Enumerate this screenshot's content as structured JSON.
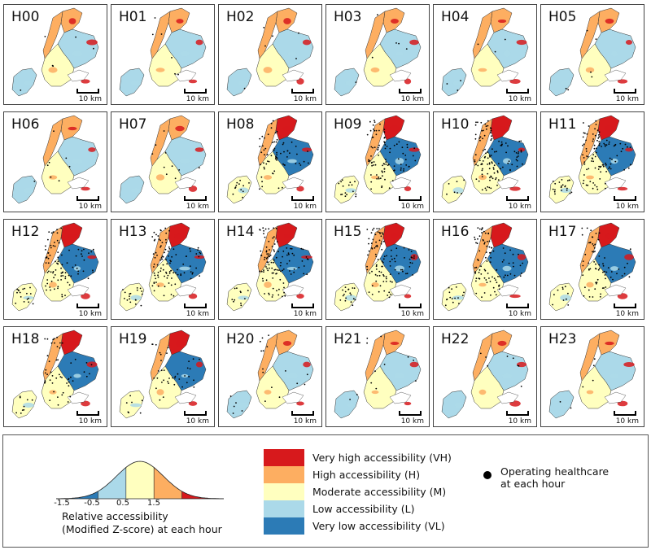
{
  "panels": [
    {
      "label": "H00",
      "scale": "10 km",
      "points": 6
    },
    {
      "label": "H01",
      "scale": "10 km",
      "points": 6
    },
    {
      "label": "H02",
      "scale": "10 km",
      "points": 6
    },
    {
      "label": "H03",
      "scale": "10 km",
      "points": 6
    },
    {
      "label": "H04",
      "scale": "10 km",
      "points": 6
    },
    {
      "label": "H05",
      "scale": "10 km",
      "points": 6
    },
    {
      "label": "H06",
      "scale": "10 km",
      "points": 8
    },
    {
      "label": "H07",
      "scale": "10 km",
      "points": 10
    },
    {
      "label": "H08",
      "scale": "10 km",
      "points": 80
    },
    {
      "label": "H09",
      "scale": "10 km",
      "points": 110
    },
    {
      "label": "H10",
      "scale": "10 km",
      "points": 120
    },
    {
      "label": "H11",
      "scale": "10 km",
      "points": 120
    },
    {
      "label": "H12",
      "scale": "10 km",
      "points": 110
    },
    {
      "label": "H13",
      "scale": "10 km",
      "points": 120
    },
    {
      "label": "H14",
      "scale": "10 km",
      "points": 120
    },
    {
      "label": "H15",
      "scale": "10 km",
      "points": 120
    },
    {
      "label": "H16",
      "scale": "10 km",
      "points": 110
    },
    {
      "label": "H17",
      "scale": "10 km",
      "points": 80
    },
    {
      "label": "H18",
      "scale": "10 km",
      "points": 60
    },
    {
      "label": "H19",
      "scale": "10 km",
      "points": 45
    },
    {
      "label": "H20",
      "scale": "10 km",
      "points": 20
    },
    {
      "label": "H21",
      "scale": "10 km",
      "points": 12
    },
    {
      "label": "H22",
      "scale": "10 km",
      "points": 8
    },
    {
      "label": "H23",
      "scale": "10 km",
      "points": 6
    }
  ],
  "legend": {
    "z_ticks": [
      "-1.5",
      "-0.5",
      "0.5",
      "1.5"
    ],
    "z_title_line1": "Relative accessibility",
    "z_title_line2": "(Modified Z-score) at each hour",
    "classes": [
      {
        "label": "Very high accessibility (VH)",
        "color": "#d7191c"
      },
      {
        "label": "High accessibility (H)",
        "color": "#fdae61"
      },
      {
        "label": "Moderate accessibility (M)",
        "color": "#ffffbf"
      },
      {
        "label": "Low accessibility (L)",
        "color": "#abd9e9"
      },
      {
        "label": "Very low accessibility (VL)",
        "color": "#2c7bb6"
      }
    ],
    "dot_label_line1": "Operating healthcare",
    "dot_label_line2": "at each hour",
    "dot_color": "#000000"
  }
}
